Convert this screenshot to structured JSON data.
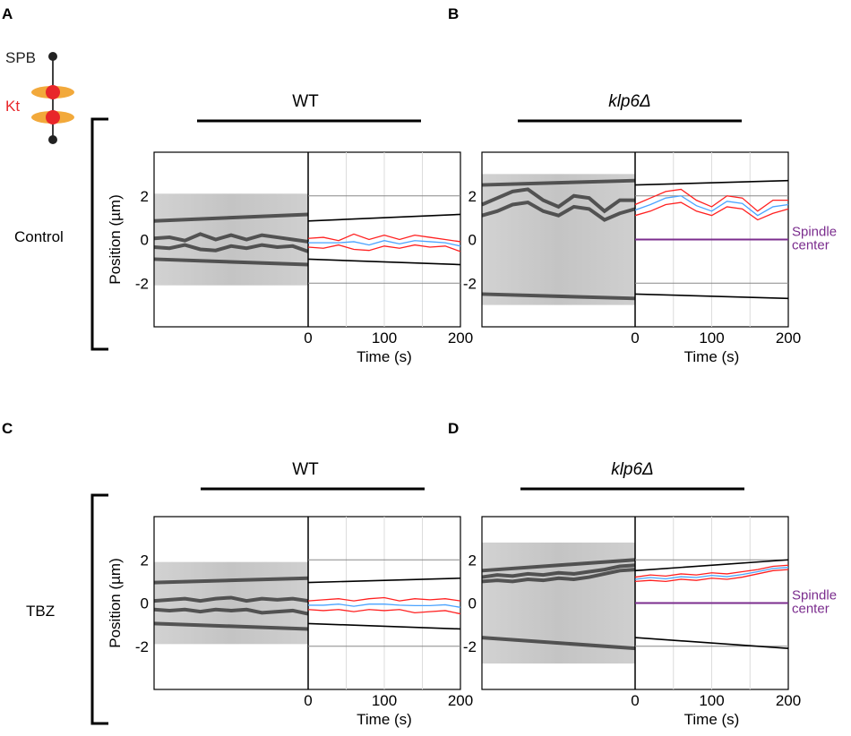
{
  "legend": {
    "spb": "SPB",
    "kt": "Kt"
  },
  "rows": [
    {
      "label": "Control"
    },
    {
      "label": "TBZ"
    }
  ],
  "conditions": {
    "wt": "WT",
    "klp6": "klp6Δ"
  },
  "spindle_label": [
    "Spindle",
    "center"
  ],
  "colors": {
    "spb_trace": "#000000",
    "kt_trace": "#ff2020",
    "kt_mean": "#4aa3ff",
    "spindle_center": "#7b2d8e",
    "kt_legend": "#e8262a",
    "kt_arm": "#f2a93b"
  },
  "chart_data": [
    {
      "panel": "A",
      "condition": "WT",
      "row": "Control",
      "type": "line",
      "xlabel": "Time (s)",
      "ylabel": "Position (µm)",
      "xlim": [
        0,
        200
      ],
      "ylim": [
        -4,
        4
      ],
      "xticks": [
        0,
        100,
        200
      ],
      "yticks": [
        -2,
        0,
        2
      ],
      "series": [
        {
          "kind": "spb",
          "x": [
            0,
            200
          ],
          "y": [
            0.85,
            1.15
          ]
        },
        {
          "kind": "spb",
          "x": [
            0,
            200
          ],
          "y": [
            -0.9,
            -1.15
          ]
        },
        {
          "kind": "kt",
          "x": [
            0,
            20,
            40,
            60,
            80,
            100,
            120,
            140,
            160,
            180,
            200
          ],
          "y": [
            0.05,
            0.1,
            -0.05,
            0.25,
            0.0,
            0.2,
            0.0,
            0.2,
            0.1,
            0.0,
            -0.1
          ]
        },
        {
          "kind": "kt",
          "x": [
            0,
            20,
            40,
            60,
            80,
            100,
            120,
            140,
            160,
            180,
            200
          ],
          "y": [
            -0.35,
            -0.4,
            -0.25,
            -0.45,
            -0.5,
            -0.3,
            -0.4,
            -0.25,
            -0.35,
            -0.3,
            -0.55
          ]
        },
        {
          "kind": "mean",
          "x": [
            0,
            20,
            40,
            60,
            80,
            100,
            120,
            140,
            160,
            180,
            200
          ],
          "y": [
            -0.15,
            -0.15,
            -0.15,
            -0.1,
            -0.25,
            -0.05,
            -0.2,
            -0.05,
            -0.1,
            -0.15,
            -0.3
          ]
        }
      ]
    },
    {
      "panel": "B",
      "condition": "klp6Δ",
      "row": "Control",
      "type": "line",
      "xlabel": "Time (s)",
      "ylabel": "",
      "xlim": [
        0,
        200
      ],
      "ylim": [
        -4,
        4
      ],
      "xticks": [
        0,
        100,
        200
      ],
      "yticks": [
        -2,
        0,
        2
      ],
      "spindle_center": 0,
      "series": [
        {
          "kind": "spb",
          "x": [
            0,
            200
          ],
          "y": [
            2.5,
            2.7
          ]
        },
        {
          "kind": "spb",
          "x": [
            0,
            200
          ],
          "y": [
            -2.5,
            -2.7
          ]
        },
        {
          "kind": "kt",
          "x": [
            0,
            20,
            40,
            60,
            80,
            100,
            120,
            140,
            160,
            180,
            200
          ],
          "y": [
            1.6,
            1.9,
            2.2,
            2.3,
            1.8,
            1.5,
            2.0,
            1.9,
            1.3,
            1.8,
            1.8
          ]
        },
        {
          "kind": "kt",
          "x": [
            0,
            20,
            40,
            60,
            80,
            100,
            120,
            140,
            160,
            180,
            200
          ],
          "y": [
            1.1,
            1.3,
            1.6,
            1.7,
            1.3,
            1.1,
            1.5,
            1.4,
            0.9,
            1.2,
            1.4
          ]
        },
        {
          "kind": "mean",
          "x": [
            0,
            20,
            40,
            60,
            80,
            100,
            120,
            140,
            160,
            180,
            200
          ],
          "y": [
            1.35,
            1.6,
            1.9,
            2.0,
            1.55,
            1.3,
            1.75,
            1.65,
            1.1,
            1.5,
            1.6
          ]
        }
      ]
    },
    {
      "panel": "C",
      "condition": "WT",
      "row": "TBZ",
      "type": "line",
      "xlabel": "Time (s)",
      "ylabel": "Position (µm)",
      "xlim": [
        0,
        200
      ],
      "ylim": [
        -4,
        4
      ],
      "xticks": [
        0,
        100,
        200
      ],
      "yticks": [
        -2,
        0,
        2
      ],
      "series": [
        {
          "kind": "spb",
          "x": [
            0,
            200
          ],
          "y": [
            0.95,
            1.15
          ]
        },
        {
          "kind": "spb",
          "x": [
            0,
            200
          ],
          "y": [
            -0.95,
            -1.2
          ]
        },
        {
          "kind": "kt",
          "x": [
            0,
            20,
            40,
            60,
            80,
            100,
            120,
            140,
            160,
            180,
            200
          ],
          "y": [
            0.1,
            0.15,
            0.2,
            0.1,
            0.2,
            0.25,
            0.1,
            0.2,
            0.15,
            0.2,
            0.1
          ]
        },
        {
          "kind": "kt",
          "x": [
            0,
            20,
            40,
            60,
            80,
            100,
            120,
            140,
            160,
            180,
            200
          ],
          "y": [
            -0.3,
            -0.35,
            -0.3,
            -0.4,
            -0.3,
            -0.35,
            -0.3,
            -0.45,
            -0.4,
            -0.35,
            -0.5
          ]
        },
        {
          "kind": "mean",
          "x": [
            0,
            20,
            40,
            60,
            80,
            100,
            120,
            140,
            160,
            180,
            200
          ],
          "y": [
            -0.1,
            -0.1,
            -0.05,
            -0.15,
            -0.05,
            -0.05,
            -0.1,
            -0.12,
            -0.12,
            -0.08,
            -0.2
          ]
        }
      ]
    },
    {
      "panel": "D",
      "condition": "klp6Δ",
      "row": "TBZ",
      "type": "line",
      "xlabel": "Time (s)",
      "ylabel": "",
      "xlim": [
        0,
        200
      ],
      "ylim": [
        -4,
        4
      ],
      "xticks": [
        0,
        100,
        200
      ],
      "yticks": [
        -2,
        0,
        2
      ],
      "spindle_center": 0,
      "series": [
        {
          "kind": "spb",
          "x": [
            0,
            200
          ],
          "y": [
            1.5,
            2.0
          ]
        },
        {
          "kind": "spb",
          "x": [
            0,
            200
          ],
          "y": [
            -1.6,
            -2.1
          ]
        },
        {
          "kind": "kt",
          "x": [
            0,
            20,
            40,
            60,
            80,
            100,
            120,
            140,
            160,
            180,
            200
          ],
          "y": [
            1.2,
            1.3,
            1.25,
            1.35,
            1.3,
            1.4,
            1.35,
            1.45,
            1.55,
            1.7,
            1.75
          ]
        },
        {
          "kind": "kt",
          "x": [
            0,
            20,
            40,
            60,
            80,
            100,
            120,
            140,
            160,
            180,
            200
          ],
          "y": [
            1.0,
            1.05,
            1.0,
            1.1,
            1.05,
            1.15,
            1.1,
            1.2,
            1.35,
            1.5,
            1.55
          ]
        },
        {
          "kind": "mean",
          "x": [
            0,
            20,
            40,
            60,
            80,
            100,
            120,
            140,
            160,
            180,
            200
          ],
          "y": [
            1.1,
            1.18,
            1.12,
            1.22,
            1.18,
            1.28,
            1.22,
            1.32,
            1.45,
            1.6,
            1.65
          ]
        }
      ]
    }
  ]
}
